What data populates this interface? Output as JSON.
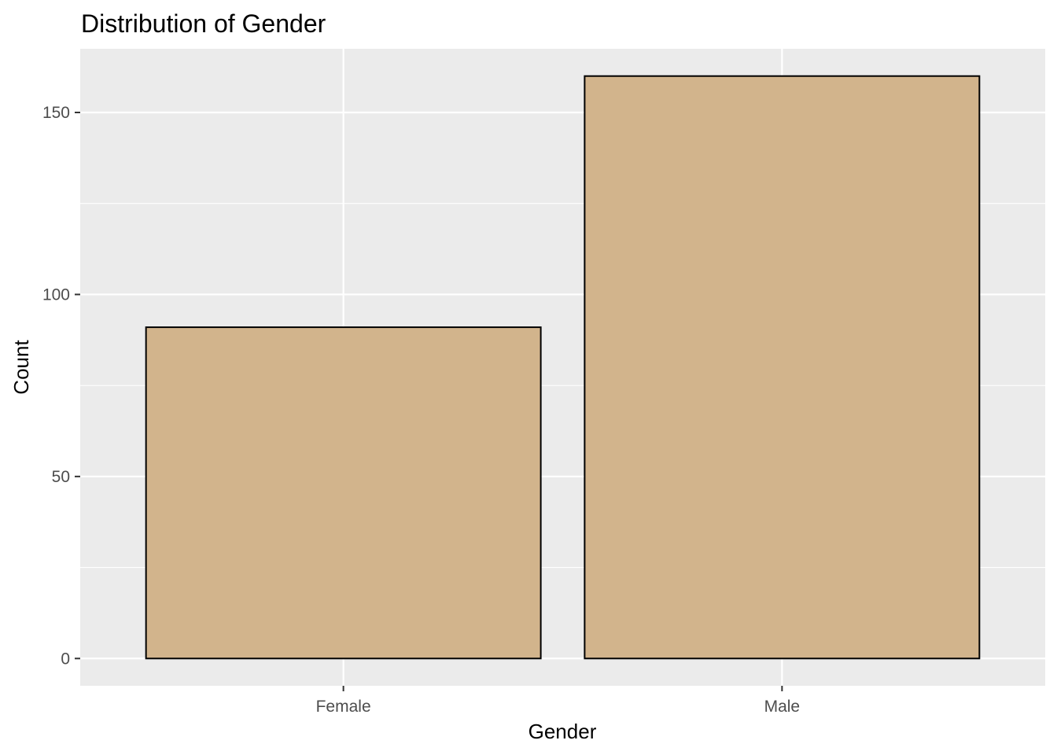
{
  "colors": {
    "panel_background": "#EBEBEB",
    "grid_line": "#FFFFFF",
    "bar_fill": "#D2B48C",
    "bar_outline": "#000000",
    "tick_color": "#333333",
    "tick_label": "#4D4D4D"
  },
  "chart_data": {
    "type": "bar",
    "title": "Distribution of Gender",
    "xlabel": "Gender",
    "ylabel": "Count",
    "categories": [
      "Female",
      "Male"
    ],
    "values": [
      91,
      160
    ],
    "ylim": [
      -7.5,
      167.5
    ],
    "yticks": [
      0,
      50,
      100,
      150
    ],
    "yticks_minor": [
      25,
      75,
      125
    ],
    "grid": true,
    "legend": "none"
  }
}
